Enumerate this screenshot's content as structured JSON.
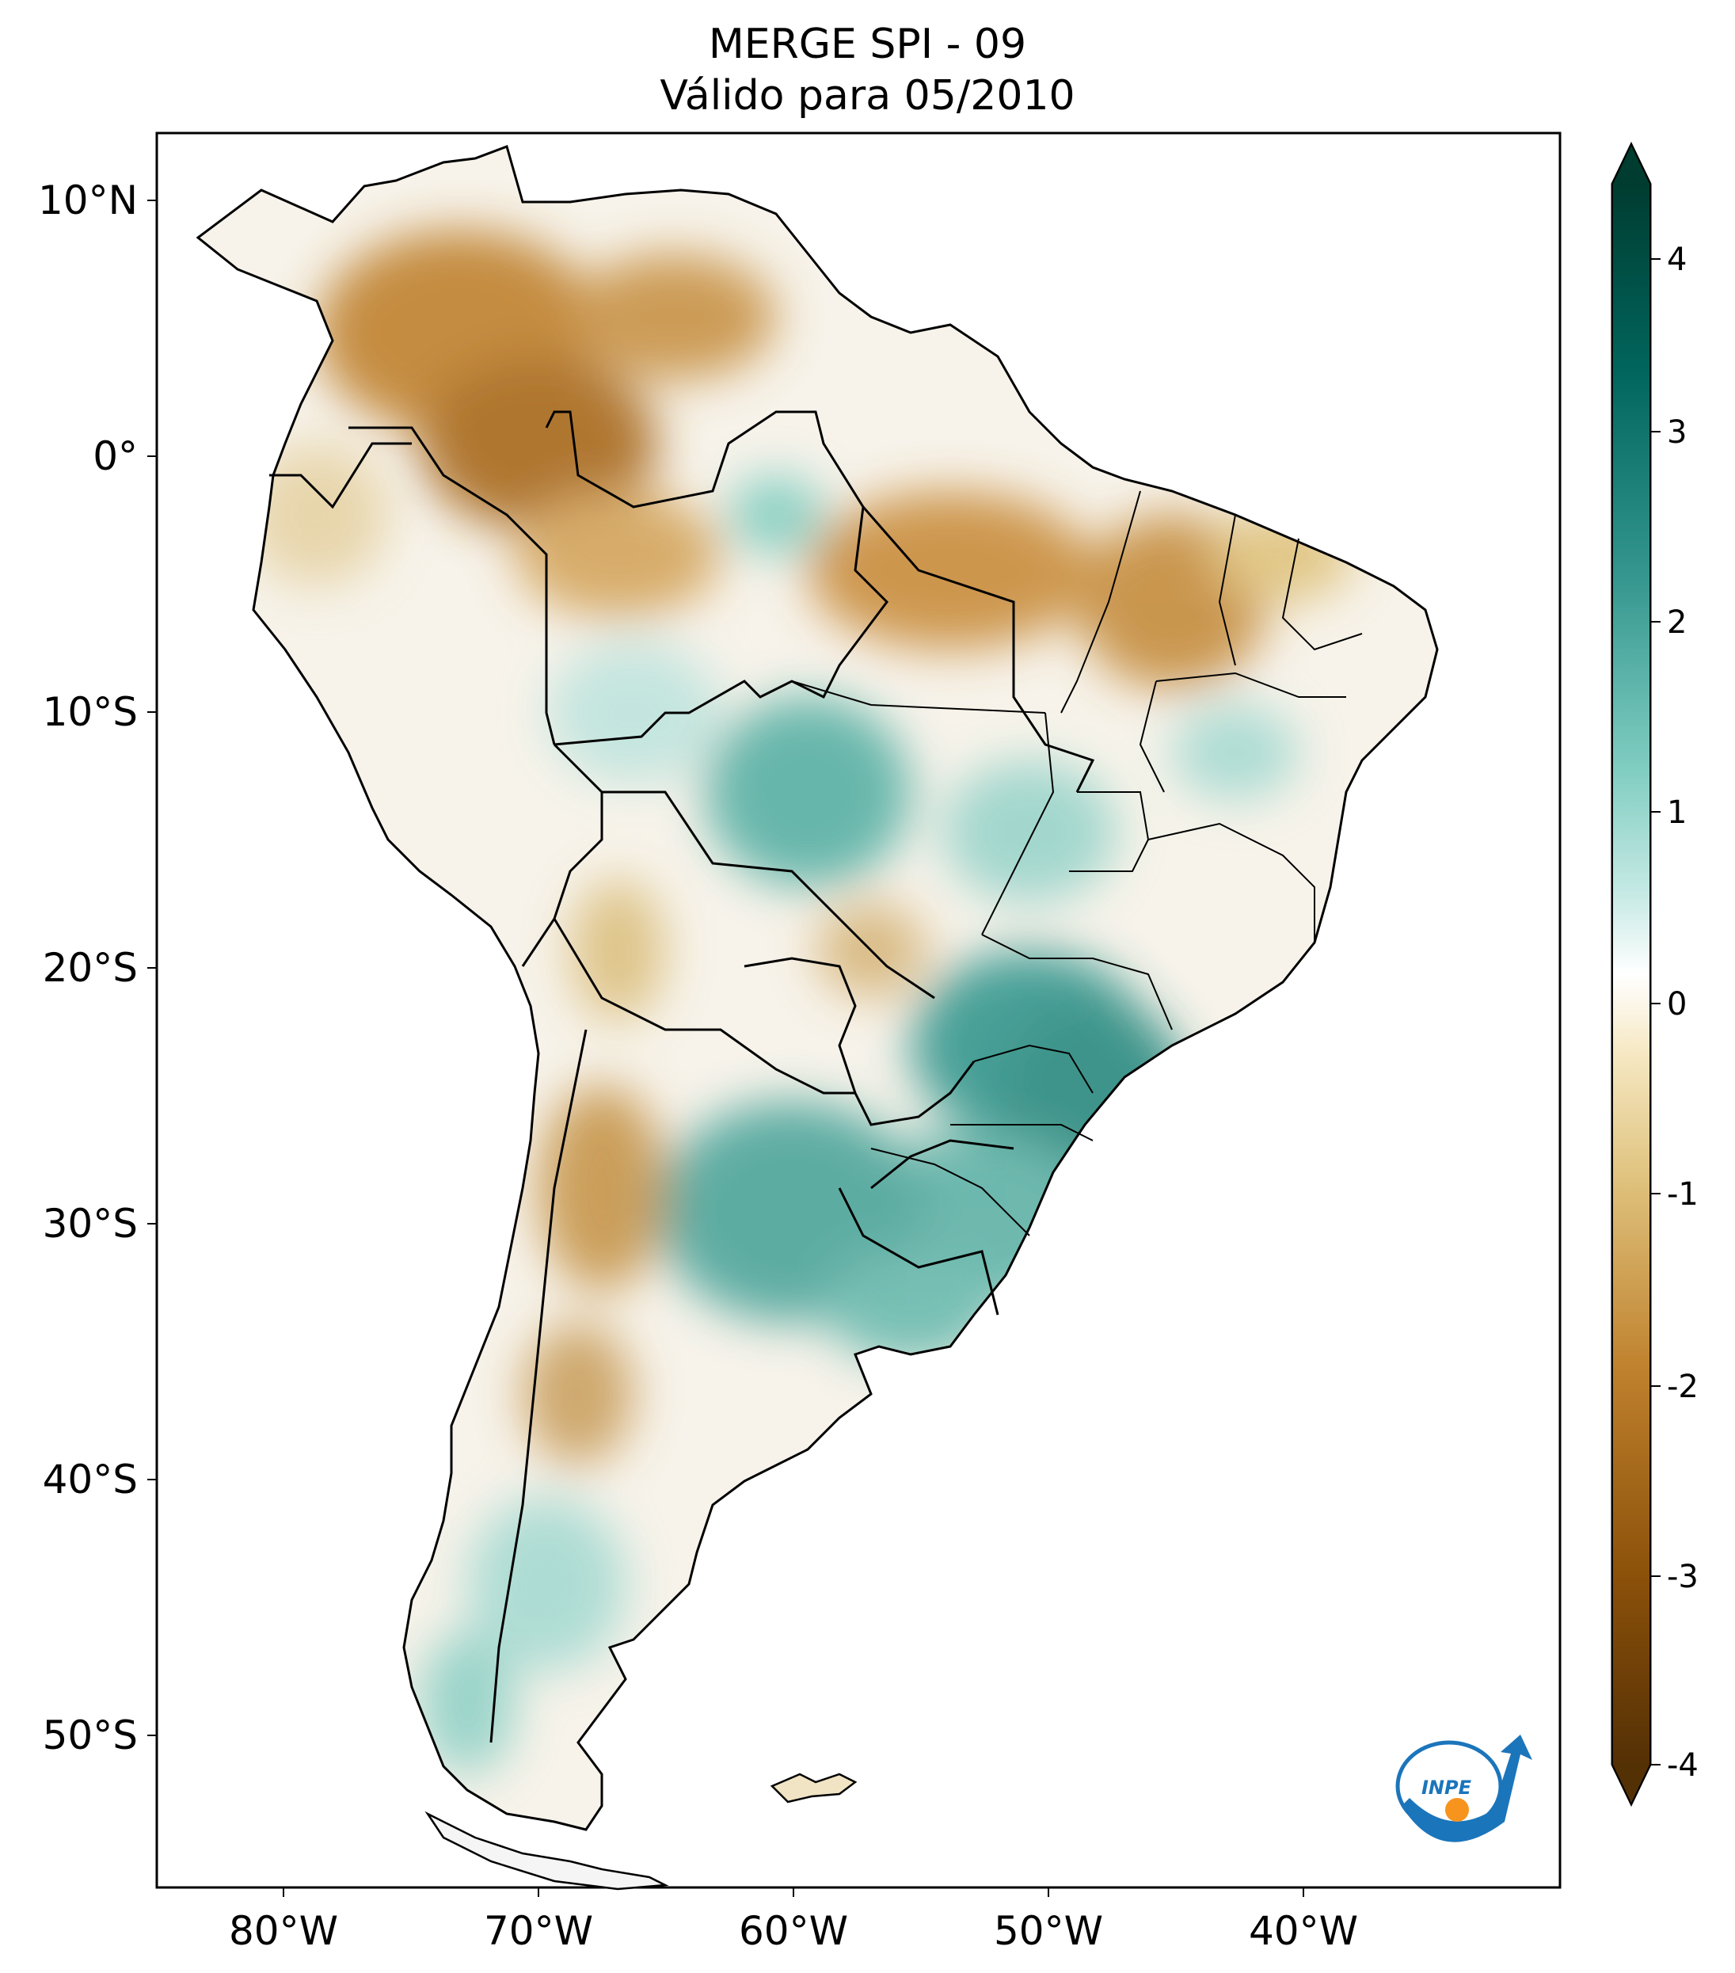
{
  "title": {
    "line1": "MERGE   SPI - 09",
    "line2": "Válido para 05/2010"
  },
  "map": {
    "lat_ticks": [
      "10°N",
      "0°",
      "10°S",
      "20°S",
      "30°S",
      "40°S",
      "50°S"
    ],
    "lon_ticks": [
      "80°W",
      "70°W",
      "60°W",
      "50°W",
      "40°W"
    ],
    "lon_range": [
      -85,
      -30
    ],
    "lat_range": [
      -56,
      13
    ]
  },
  "colorbar": {
    "ticks": [
      "4",
      "3",
      "2",
      "1",
      "0",
      "-1",
      "-2",
      "-3",
      "-4"
    ],
    "colors": {
      "max": "#003c30",
      "high": "#01665e",
      "mid_high": "#35978f",
      "low_high": "#80cdc1",
      "light_high": "#c7eae5",
      "zero": "#ffffff",
      "light_low": "#f6e8c3",
      "low_low": "#dfc27d",
      "mid_low": "#bf812d",
      "low": "#8c510a",
      "min": "#543005"
    }
  },
  "logo": {
    "text": "INPE",
    "colors": {
      "blue": "#1b75bb",
      "orange": "#f7941d"
    }
  }
}
